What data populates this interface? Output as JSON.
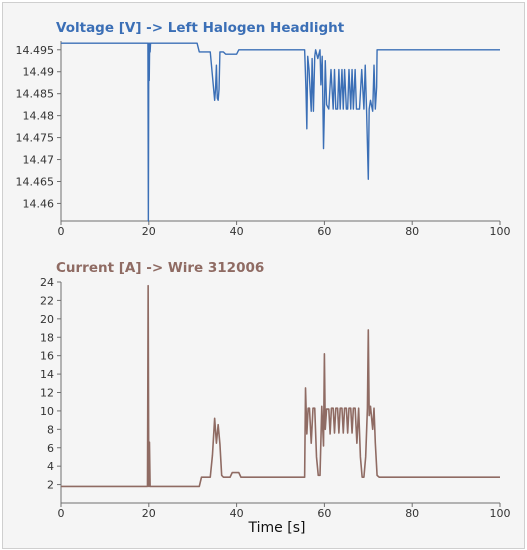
{
  "chart_data": [
    {
      "type": "line",
      "title": "Voltage [V] -> Left Halogen Headlight",
      "xlabel": "",
      "ylabel": "",
      "xlim": [
        0,
        100
      ],
      "ylim": [
        14.456,
        14.497
      ],
      "xticks": [
        0,
        20,
        40,
        60,
        80,
        100
      ],
      "yticks": [
        14.46,
        14.465,
        14.47,
        14.475,
        14.48,
        14.485,
        14.49,
        14.495
      ],
      "ytick_labels": [
        "14.46",
        "14.465",
        "14.47",
        "14.475",
        "14.48",
        "14.485",
        "14.49",
        "14.495"
      ],
      "grid": false,
      "color": "#3b6fb6",
      "series": [
        {
          "x": [
            0,
            19.8,
            19.9,
            20.0,
            20.1,
            20.2,
            20.3,
            20.4,
            20.5,
            21,
            31,
            31.5,
            32,
            33,
            34,
            34.5,
            35,
            35.2,
            35.4,
            35.6,
            35.8,
            36,
            36.2,
            36.5,
            37,
            37.5,
            38,
            38.5,
            40,
            40.5,
            55.5,
            55.8,
            56.0,
            56.2,
            56.5,
            57,
            57.2,
            57.5,
            57.8,
            58,
            58.5,
            59,
            59.2,
            59.5,
            59.8,
            60,
            60.2,
            60.5,
            61,
            61.5,
            62,
            62.3,
            62.6,
            63,
            63.3,
            63.6,
            64,
            64.3,
            64.6,
            65,
            65.3,
            65.6,
            66,
            66.3,
            66.6,
            67,
            67.3,
            67.6,
            68,
            68.5,
            69,
            69.3,
            69.6,
            70,
            70.2,
            70.5,
            71,
            71.3,
            71.6,
            71.9,
            72,
            72.5,
            100
          ],
          "y": [
            14.4965,
            14.4965,
            14.456,
            14.4965,
            14.488,
            14.4965,
            14.4945,
            14.4965,
            14.4965,
            14.4965,
            14.4965,
            14.4945,
            14.4945,
            14.4945,
            14.4945,
            14.489,
            14.4835,
            14.486,
            14.4915,
            14.484,
            14.4835,
            14.486,
            14.4945,
            14.4945,
            14.4945,
            14.494,
            14.494,
            14.494,
            14.494,
            14.495,
            14.495,
            14.486,
            14.477,
            14.4935,
            14.4905,
            14.481,
            14.493,
            14.481,
            14.4935,
            14.495,
            14.493,
            14.495,
            14.487,
            14.4935,
            14.4725,
            14.4815,
            14.4925,
            14.4825,
            14.4815,
            14.4905,
            14.4815,
            14.4905,
            14.4815,
            14.4815,
            14.4905,
            14.4815,
            14.4905,
            14.4815,
            14.4905,
            14.4815,
            14.4815,
            14.4905,
            14.4815,
            14.4905,
            14.4815,
            14.4905,
            14.4815,
            14.4815,
            14.4815,
            14.4905,
            14.4815,
            14.4915,
            14.4815,
            14.4655,
            14.4815,
            14.4835,
            14.481,
            14.4915,
            14.4815,
            14.4865,
            14.495,
            14.495,
            14.495
          ]
        }
      ]
    },
    {
      "type": "line",
      "title": "Current [A] -> Wire 312006",
      "xlabel": "Time [s]",
      "ylabel": "",
      "xlim": [
        0,
        100
      ],
      "ylim": [
        0,
        24
      ],
      "xticks": [
        0,
        20,
        40,
        60,
        80,
        100
      ],
      "yticks": [
        2,
        4,
        6,
        8,
        10,
        12,
        14,
        16,
        18,
        20,
        22,
        24
      ],
      "ytick_labels": [
        "2",
        "4",
        "6",
        "8",
        "10",
        "12",
        "14",
        "16",
        "18",
        "20",
        "22",
        "24"
      ],
      "grid": false,
      "color": "#8f6b63",
      "series": [
        {
          "x": [
            0,
            19.7,
            19.85,
            20.0,
            20.15,
            20.3,
            20.5,
            31.5,
            32,
            34,
            34.5,
            35,
            35.4,
            35.8,
            36.2,
            36.6,
            37,
            38.5,
            39,
            40.5,
            41,
            55.5,
            55.7,
            56.0,
            56.3,
            56.6,
            57,
            57.4,
            57.8,
            58.2,
            58.6,
            59,
            59.4,
            59.8,
            60.0,
            60.2,
            60.5,
            61,
            61.3,
            61.6,
            62,
            62.3,
            62.6,
            63,
            63.3,
            63.6,
            64,
            64.3,
            64.6,
            65,
            65.3,
            65.6,
            66,
            66.3,
            66.6,
            67,
            67.4,
            67.8,
            68.2,
            68.6,
            69,
            69.4,
            69.8,
            70.0,
            70.2,
            70.5,
            71,
            71.3,
            71.6,
            72,
            72.5,
            100
          ],
          "y": [
            1.8,
            1.8,
            23.6,
            1.8,
            6.6,
            1.8,
            1.8,
            1.8,
            2.8,
            2.8,
            5.2,
            9.2,
            6.5,
            8.5,
            6.4,
            3,
            2.8,
            2.8,
            3.3,
            3.3,
            2.8,
            2.8,
            12.5,
            7.5,
            10.3,
            10.3,
            6.5,
            10.3,
            10.3,
            5,
            3,
            3,
            10.5,
            6.2,
            16.2,
            8,
            10.2,
            10.2,
            7.5,
            10.3,
            10.3,
            7.6,
            10.3,
            10.3,
            7.6,
            10.3,
            10.3,
            7.6,
            10.3,
            10.3,
            7.6,
            10.3,
            10.3,
            7.6,
            10.3,
            10.3,
            6.5,
            10.3,
            5,
            2.8,
            2.8,
            5,
            10.3,
            18.8,
            9.5,
            10.5,
            8,
            10.3,
            6.5,
            3,
            2.8,
            2.8
          ]
        }
      ]
    }
  ]
}
